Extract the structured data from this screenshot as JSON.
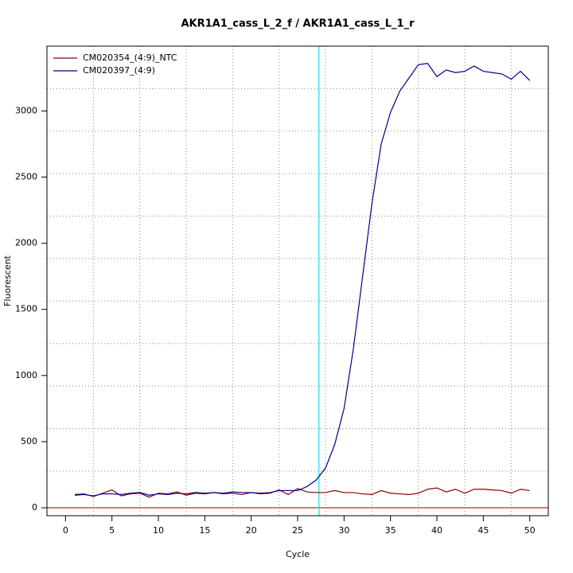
{
  "chart_data": {
    "type": "line",
    "title": "AKR1A1_cass_L_2_f / AKR1A1_cass_L_1_r",
    "x_label": "Cycle",
    "y_label": "Fluorescent",
    "x": [
      1,
      2,
      3,
      4,
      5,
      6,
      7,
      8,
      9,
      10,
      11,
      12,
      13,
      14,
      15,
      16,
      17,
      18,
      19,
      20,
      21,
      22,
      23,
      24,
      25,
      26,
      27,
      28,
      29,
      30,
      31,
      32,
      33,
      34,
      35,
      36,
      37,
      38,
      39,
      40,
      41,
      42,
      43,
      44,
      45,
      46,
      47,
      48,
      49,
      50
    ],
    "series": [
      {
        "name": "CM020354_(4:9)_NTC",
        "color": "#8b0000",
        "values": [
          100,
          105,
          85,
          110,
          135,
          90,
          105,
          110,
          80,
          110,
          105,
          120,
          95,
          110,
          105,
          115,
          105,
          110,
          100,
          115,
          105,
          110,
          135,
          100,
          145,
          120,
          115,
          115,
          130,
          115,
          115,
          105,
          100,
          130,
          110,
          105,
          100,
          110,
          140,
          150,
          120,
          140,
          110,
          140,
          140,
          135,
          130,
          110,
          140,
          130
        ]
      },
      {
        "name": "CM020397_(4:9)",
        "color": "#00008b",
        "values": [
          95,
          100,
          90,
          105,
          105,
          100,
          110,
          115,
          95,
          105,
          100,
          110,
          105,
          115,
          110,
          115,
          110,
          120,
          115,
          115,
          110,
          115,
          130,
          130,
          130,
          160,
          210,
          300,
          480,
          750,
          1200,
          1750,
          2300,
          2750,
          2990,
          3150,
          3250,
          3350,
          3360,
          3260,
          3310,
          3290,
          3300,
          3340,
          3300,
          3290,
          3280,
          3240,
          3300,
          3230
        ]
      }
    ],
    "xlim": [
      -2,
      52
    ],
    "ylim": [
      -60,
      3490
    ],
    "xticks": [
      0,
      5,
      10,
      15,
      20,
      25,
      30,
      35,
      40,
      45,
      50
    ],
    "yticks": [
      0,
      500,
      1000,
      1500,
      2000,
      2500,
      3000
    ],
    "xgrid": [
      3,
      8,
      13,
      18,
      23,
      28,
      33,
      38,
      43,
      48
    ],
    "ygrid": [
      277,
      598,
      920,
      1241,
      1562,
      1884,
      2205,
      2526,
      2848,
      3169
    ],
    "threshold_x": 27.3,
    "threshold_color": "#00e5ee",
    "baseline_y": 0,
    "baseline_color": "#cd2626",
    "legend": "top-left"
  }
}
